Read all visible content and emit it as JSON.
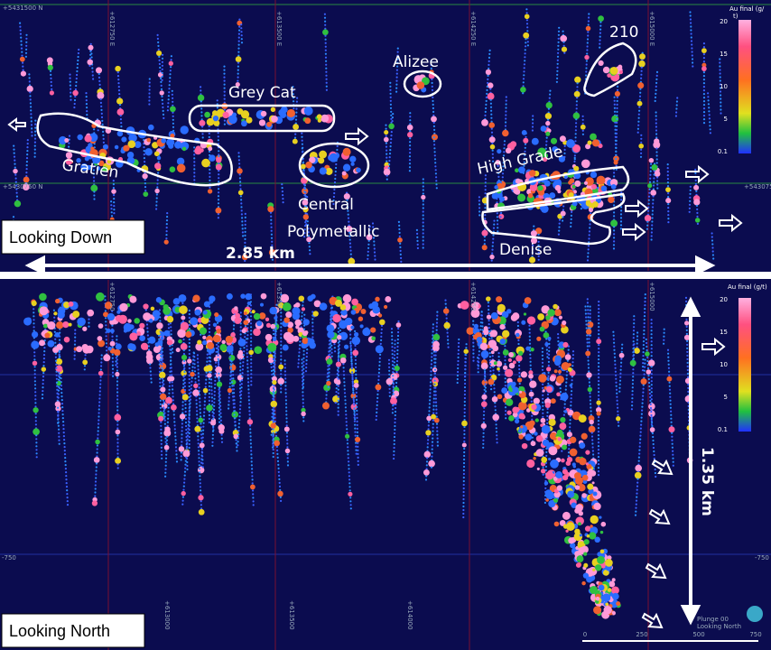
{
  "plan_view": {
    "label": "Looking Down",
    "width_label": "2.85 km",
    "northings": [
      "+5431500 N",
      "+5430750 N"
    ],
    "eastings": [
      "+612750 E",
      "+613500 E",
      "+614250 E",
      "+615000 E"
    ],
    "east_edge_label": "+543075",
    "zones": [
      "Gratien",
      "Grey Cat",
      "Central",
      "Polymetallic",
      "Alizee",
      "210",
      "High Grade",
      "Denise"
    ],
    "legend": {
      "title": "Au final (g/",
      "title2": "t)",
      "ticks": [
        20,
        15,
        10,
        5,
        0.1
      ]
    }
  },
  "section_view": {
    "label": "Looking North",
    "depth_label": "1.35 km",
    "eastings": [
      "+612750",
      "+613500",
      "+614250",
      "+615000"
    ],
    "bottom_eastings": [
      "+613000",
      "+613500",
      "+614000"
    ],
    "left_elevation": "-750",
    "right_elevation": "-750",
    "legend": {
      "title": "Au final (g/t)",
      "ticks": [
        20,
        15,
        10,
        5,
        0.1
      ]
    },
    "view_info": [
      "Plunge 00",
      "Looking North"
    ],
    "scale_bar": [
      0,
      250,
      500,
      750
    ]
  }
}
